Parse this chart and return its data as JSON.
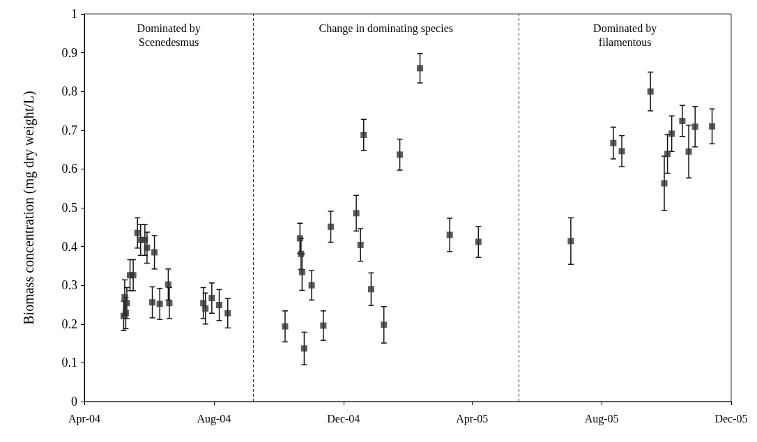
{
  "chart_data": {
    "type": "scatter",
    "ylabel": "Biomass concentration (mg dry weight/L)",
    "x": [
      "2004-05-08",
      "2004-05-09",
      "2004-05-10",
      "2004-05-11",
      "2004-05-14",
      "2004-05-17",
      "2004-05-21",
      "2004-05-24",
      "2004-05-28",
      "2004-05-30",
      "2004-06-04",
      "2004-06-06",
      "2004-06-11",
      "2004-06-19",
      "2004-06-20",
      "2004-07-22",
      "2004-07-24",
      "2004-07-30",
      "2004-08-06",
      "2004-08-14",
      "2004-10-07",
      "2004-10-21",
      "2004-10-22",
      "2004-10-23",
      "2004-10-25",
      "2004-11-01",
      "2004-11-12",
      "2004-11-19",
      "2004-12-13",
      "2004-12-17",
      "2004-12-20",
      "2004-12-27",
      "2005-01-08",
      "2005-01-23",
      "2005-02-11",
      "2005-03-11",
      "2005-04-07",
      "2005-07-03",
      "2005-08-12",
      "2005-08-20",
      "2005-09-16",
      "2005-09-29",
      "2005-10-02",
      "2005-10-06",
      "2005-10-16",
      "2005-10-22",
      "2005-10-28",
      "2005-11-13"
    ],
    "values": [
      0.221,
      0.269,
      0.228,
      0.254,
      0.326,
      0.326,
      0.435,
      0.417,
      0.417,
      0.397,
      0.256,
      0.385,
      0.252,
      0.302,
      0.254,
      0.254,
      0.24,
      0.267,
      0.249,
      0.228,
      0.194,
      0.421,
      0.381,
      0.334,
      0.137,
      0.3,
      0.196,
      0.451,
      0.486,
      0.404,
      0.688,
      0.29,
      0.198,
      0.637,
      0.86,
      0.43,
      0.412,
      0.414,
      0.667,
      0.646,
      0.8,
      0.563,
      0.639,
      0.691,
      0.724,
      0.645,
      0.709,
      0.71
    ],
    "errors": [
      0.038,
      0.045,
      0.04,
      0.04,
      0.04,
      0.04,
      0.039,
      0.04,
      0.04,
      0.04,
      0.04,
      0.043,
      0.04,
      0.04,
      0.04,
      0.04,
      0.04,
      0.039,
      0.04,
      0.038,
      0.04,
      0.039,
      0.04,
      0.047,
      0.042,
      0.038,
      0.038,
      0.04,
      0.046,
      0.042,
      0.04,
      0.042,
      0.047,
      0.04,
      0.038,
      0.043,
      0.04,
      0.06,
      0.041,
      0.04,
      0.05,
      0.07,
      0.05,
      0.046,
      0.04,
      0.068,
      0.052,
      0.045
    ],
    "color": "#333333",
    "marker": "square",
    "xlim": [
      "2004-04-01",
      "2005-12-01"
    ],
    "xticks": [
      {
        "value": "2004-04-01",
        "label": "Apr-04"
      },
      {
        "value": "2004-08-01",
        "label": "Aug-04"
      },
      {
        "value": "2004-12-01",
        "label": "Dec-04"
      },
      {
        "value": "2005-04-01",
        "label": "Apr-05"
      },
      {
        "value": "2005-08-01",
        "label": "Aug-05"
      },
      {
        "value": "2005-12-01",
        "label": "Dec-05"
      }
    ],
    "ylim": [
      0,
      1
    ],
    "yticks": [
      0,
      0.1,
      0.2,
      0.3,
      0.4,
      0.5,
      0.6,
      0.7,
      0.8,
      0.9,
      1
    ],
    "ref_lines": [
      {
        "axis": "x",
        "value": "2004-09-07",
        "color": "#333333",
        "line_style": "dashed"
      },
      {
        "axis": "x",
        "value": "2005-05-15",
        "color": "#333333",
        "line_style": "dashed"
      }
    ],
    "annotations": [
      "Dominated by\nScenedesmus",
      "Change in dominating species",
      "Dominated by\nfilamentous"
    ],
    "grid": false
  }
}
